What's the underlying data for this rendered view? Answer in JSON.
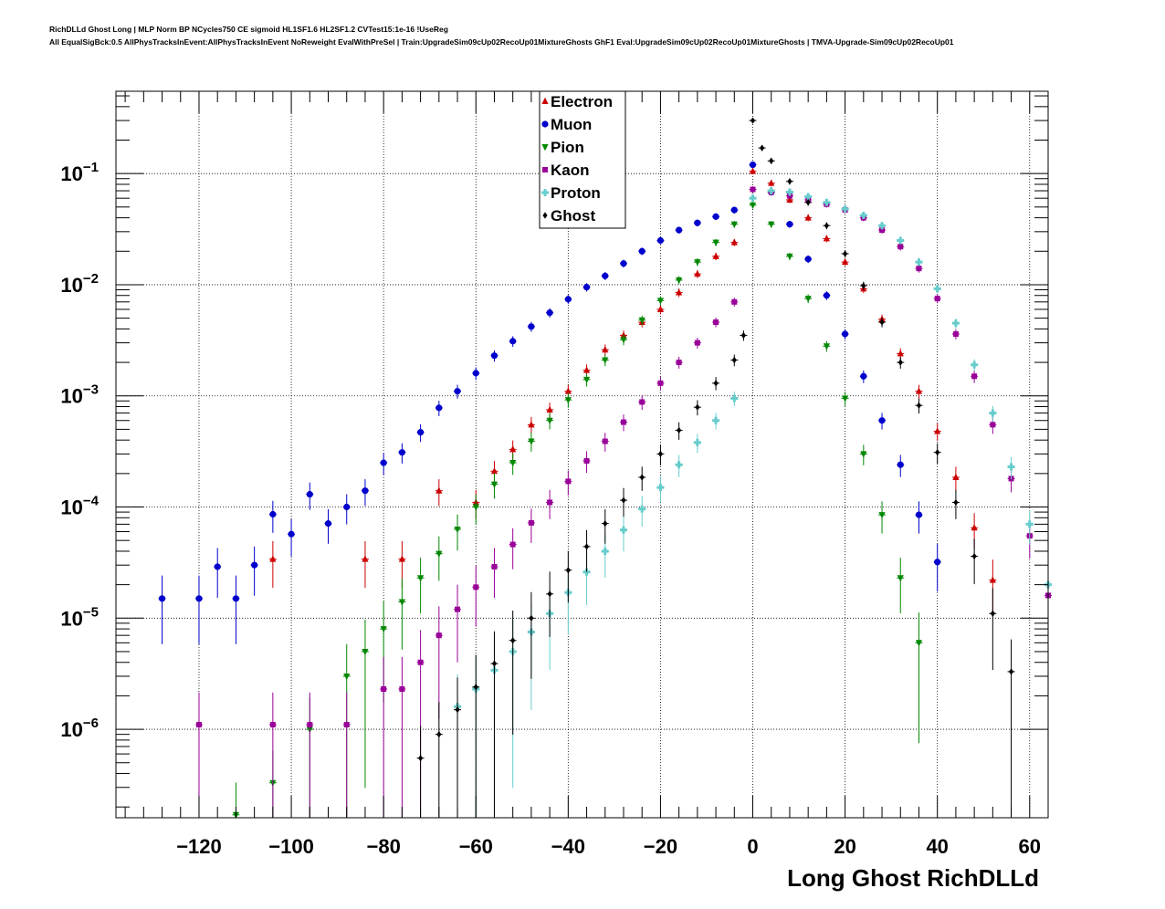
{
  "title_line_1": "RichDLLd Ghost Long | MLP Norm BP NCycles750 CE sigmoid HL1SF1.6 HL2SF1.2 CVTest15:1e-16 !UseReg",
  "title_line_2": "All EqualSigBck:0.5 AllPhysTracksInEvent:AllPhysTracksInEvent NoReweight EvalWithPreSel | Train:UpgradeSim09cUp02RecoUp01MixtureGhosts GhF1 Eval:UpgradeSim09cUp02RecoUp01MixtureGhosts | TMVA-Upgrade-Sim09cUp02RecoUp01",
  "chart_data": {
    "type": "scatter",
    "title": "RichDLLd Ghost Long",
    "xlabel": "Long Ghost RichDLLd",
    "ylabel": "",
    "xlim": [
      -138,
      64
    ],
    "ylim": [
      1.6e-07,
      0.55
    ],
    "yscale": "log",
    "grid": true,
    "legend_position": "top-center",
    "x_ticks": [
      {
        "value": -120,
        "label": "−120"
      },
      {
        "value": -100,
        "label": "−100"
      },
      {
        "value": -80,
        "label": "−80"
      },
      {
        "value": -60,
        "label": "−60"
      },
      {
        "value": -40,
        "label": "−40"
      },
      {
        "value": -20,
        "label": "−20"
      },
      {
        "value": 0,
        "label": "0"
      },
      {
        "value": 20,
        "label": "20"
      },
      {
        "value": 40,
        "label": "40"
      },
      {
        "value": 60,
        "label": "60"
      }
    ],
    "y_ticks": [
      {
        "value": 1e-06,
        "base": "10",
        "exp": "−6"
      },
      {
        "value": 1e-05,
        "base": "10",
        "exp": "−5"
      },
      {
        "value": 0.0001,
        "base": "10",
        "exp": "−4"
      },
      {
        "value": 0.001,
        "base": "10",
        "exp": "−3"
      },
      {
        "value": 0.01,
        "base": "10",
        "exp": "−2"
      },
      {
        "value": 0.1,
        "base": "10",
        "exp": "−1"
      }
    ],
    "series": [
      {
        "name": "Electron",
        "color": "#cc0000",
        "marker": "triangle-up",
        "x": [
          -104,
          -84,
          -76,
          -68,
          -60,
          -56,
          -52,
          -48,
          -44,
          -40,
          -36,
          -32,
          -28,
          -24,
          -20,
          -16,
          -12,
          -8,
          -4,
          0,
          4,
          8,
          12,
          16,
          20,
          24,
          28,
          32,
          36,
          40,
          44,
          48,
          52
        ],
        "y": [
          3.4e-05,
          3.4e-05,
          3.4e-05,
          0.00014,
          0.00011,
          0.00021,
          0.00033,
          0.00055,
          0.00075,
          0.0011,
          0.0017,
          0.0026,
          0.0035,
          0.0046,
          0.006,
          0.0085,
          0.0125,
          0.018,
          0.024,
          0.105,
          0.082,
          0.058,
          0.04,
          0.026,
          0.016,
          0.0092,
          0.0049,
          0.0024,
          0.0011,
          0.00048,
          0.000185,
          6.5e-05,
          2.2e-05
        ]
      },
      {
        "name": "Muon",
        "color": "#0000cc",
        "marker": "circle",
        "x": [
          -128,
          -120,
          -116,
          -112,
          -108,
          -104,
          -100,
          -96,
          -92,
          -88,
          -84,
          -80,
          -76,
          -72,
          -68,
          -64,
          -60,
          -56,
          -52,
          -48,
          -44,
          -40,
          -36,
          -32,
          -28,
          -24,
          -20,
          -16,
          -12,
          -8,
          -4,
          0,
          4,
          8,
          12,
          16,
          20,
          24,
          28,
          32,
          36,
          40
        ],
        "y": [
          1.5e-05,
          1.5e-05,
          2.9e-05,
          1.5e-05,
          3e-05,
          8.6e-05,
          5.7e-05,
          0.00013,
          7.1e-05,
          0.0001,
          0.00014,
          0.00025,
          0.00031,
          0.00047,
          0.00078,
          0.0011,
          0.0016,
          0.0023,
          0.0031,
          0.0042,
          0.0056,
          0.0074,
          0.0095,
          0.012,
          0.0155,
          0.02,
          0.025,
          0.031,
          0.036,
          0.041,
          0.047,
          0.12,
          0.068,
          0.035,
          0.017,
          0.008,
          0.0036,
          0.0015,
          0.0006,
          0.00024,
          8.5e-05,
          3.2e-05
        ]
      },
      {
        "name": "Pion",
        "color": "#008800",
        "marker": "triangle-down",
        "x": [
          -112,
          -104,
          -96,
          -88,
          -84,
          -80,
          -76,
          -72,
          -68,
          -64,
          -60,
          -56,
          -52,
          -48,
          -44,
          -40,
          -36,
          -32,
          -28,
          -24,
          -20,
          -16,
          -12,
          -8,
          -4,
          0,
          4,
          8,
          12,
          16,
          20,
          24,
          28,
          32,
          36
        ],
        "y": [
          1.7e-07,
          3.3e-07,
          1e-06,
          3e-06,
          5e-06,
          8e-06,
          1.4e-05,
          2.3e-05,
          3.8e-05,
          6.3e-05,
          0.0001,
          0.00016,
          0.00025,
          0.00039,
          0.0006,
          0.00092,
          0.0014,
          0.0021,
          0.0032,
          0.0048,
          0.0072,
          0.011,
          0.016,
          0.024,
          0.035,
          0.052,
          0.035,
          0.018,
          0.0075,
          0.0028,
          0.00095,
          0.0003,
          8.5e-05,
          2.3e-05,
          6e-06
        ]
      },
      {
        "name": "Kaon",
        "color": "#990099",
        "marker": "square",
        "x": [
          -120,
          -104,
          -96,
          -88,
          -80,
          -76,
          -72,
          -68,
          -64,
          -60,
          -56,
          -52,
          -48,
          -44,
          -40,
          -36,
          -32,
          -28,
          -24,
          -20,
          -16,
          -12,
          -8,
          -4,
          0,
          4,
          8,
          12,
          16,
          20,
          24,
          28,
          32,
          36,
          40,
          44,
          48,
          52,
          56,
          60,
          64
        ],
        "y": [
          1.1e-06,
          1.1e-06,
          1.1e-06,
          1.1e-06,
          2.3e-06,
          2.3e-06,
          4e-06,
          7e-06,
          1.2e-05,
          1.9e-05,
          2.9e-05,
          4.6e-05,
          7.2e-05,
          0.00011,
          0.00017,
          0.00026,
          0.00039,
          0.00058,
          0.00088,
          0.0013,
          0.002,
          0.003,
          0.0046,
          0.007,
          0.072,
          0.068,
          0.063,
          0.058,
          0.053,
          0.047,
          0.04,
          0.031,
          0.022,
          0.014,
          0.0075,
          0.0036,
          0.0015,
          0.00055,
          0.00018,
          5.5e-05,
          1.6e-05
        ]
      },
      {
        "name": "Proton",
        "color": "#66cccc",
        "marker": "cross",
        "x": [
          -64,
          -60,
          -56,
          -52,
          -48,
          -44,
          -40,
          -36,
          -32,
          -28,
          -24,
          -20,
          -16,
          -12,
          -8,
          -4,
          0,
          4,
          8,
          12,
          16,
          20,
          24,
          28,
          32,
          36,
          40,
          44,
          48,
          52,
          56,
          60,
          64
        ],
        "y": [
          1.6e-06,
          2.3e-06,
          3.4e-06,
          5e-06,
          7.5e-06,
          1.1e-05,
          1.7e-05,
          2.6e-05,
          4e-05,
          6.2e-05,
          9.6e-05,
          0.00015,
          0.00024,
          0.00038,
          0.0006,
          0.00095,
          0.06,
          0.07,
          0.068,
          0.062,
          0.055,
          0.048,
          0.042,
          0.034,
          0.025,
          0.016,
          0.0092,
          0.0045,
          0.0019,
          0.0007,
          0.00023,
          7e-05,
          2e-05
        ]
      },
      {
        "name": "Ghost",
        "color": "#000000",
        "marker": "diamond",
        "x": [
          -72,
          -68,
          -64,
          -60,
          -56,
          -52,
          -48,
          -44,
          -40,
          -36,
          -32,
          -28,
          -24,
          -20,
          -16,
          -12,
          -8,
          -4,
          -2,
          0,
          2,
          4,
          8,
          12,
          16,
          20,
          24,
          28,
          32,
          36,
          40,
          44,
          48,
          52,
          56
        ],
        "y": [
          5.5e-07,
          9e-07,
          1.5e-06,
          2.4e-06,
          3.9e-06,
          6.3e-06,
          1e-05,
          1.65e-05,
          2.7e-05,
          4.4e-05,
          7.1e-05,
          0.000115,
          0.000185,
          0.0003,
          0.00049,
          0.00079,
          0.0013,
          0.0021,
          0.0035,
          0.3,
          0.17,
          0.13,
          0.085,
          0.055,
          0.034,
          0.019,
          0.0098,
          0.0046,
          0.002,
          0.00082,
          0.00031,
          0.00011,
          3.6e-05,
          1.1e-05,
          3.3e-06
        ]
      }
    ]
  }
}
